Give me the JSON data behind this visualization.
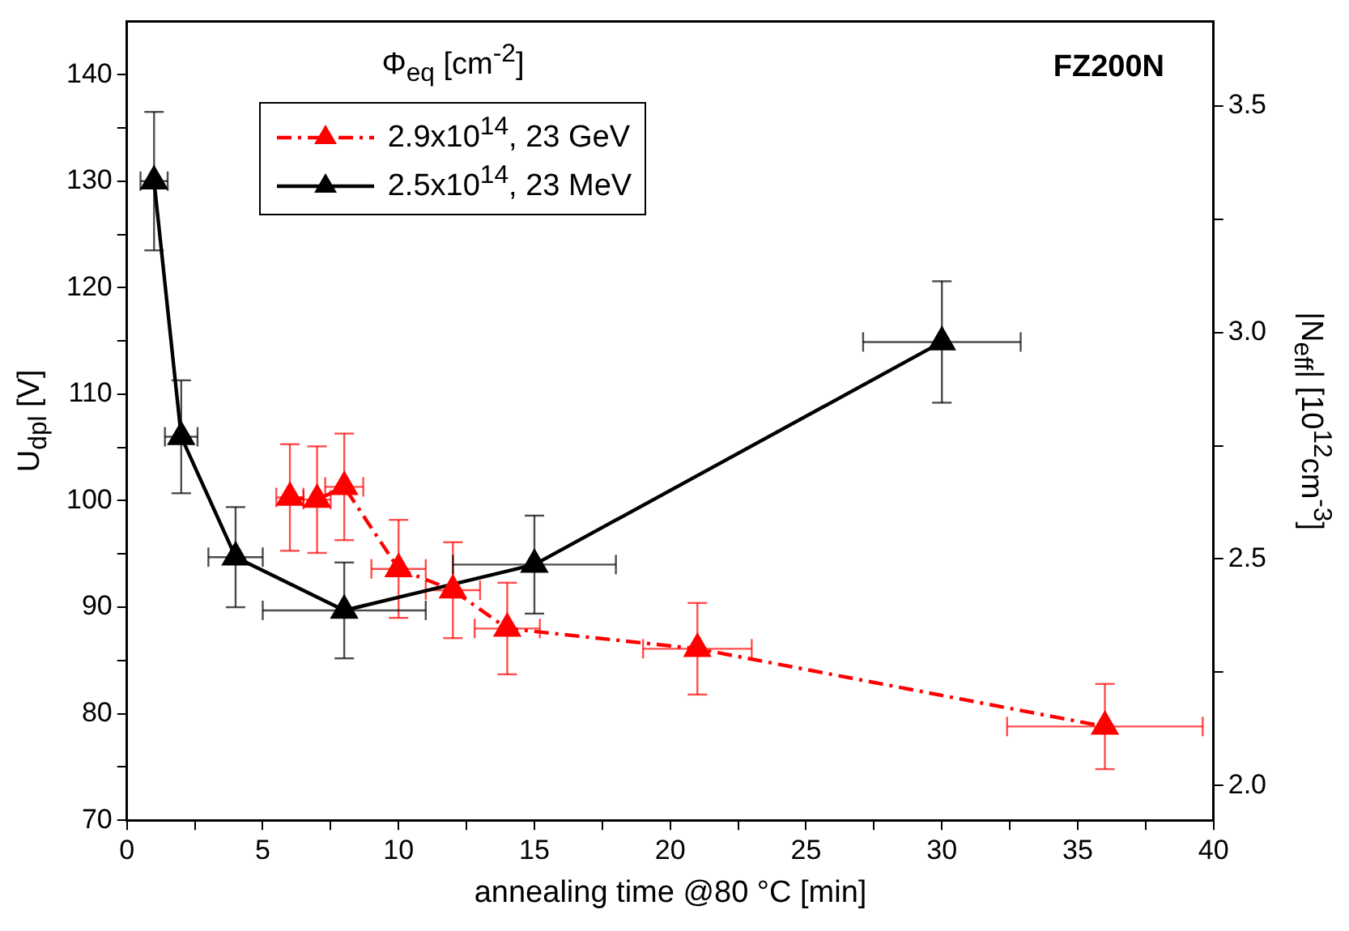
{
  "chart_data": {
    "type": "line",
    "xlabel": "annealing time @80 °C [min]",
    "ylabel": "U$_{dpl}$ [V]",
    "y2label": "|N$_{eff}$| [10$^{12}$cm$^{-3}$]",
    "legend_title": "Φ$_{eq}$ [cm$^{-2}$]",
    "annotations": [
      "FZ200N"
    ],
    "legend": "top left",
    "grid": false,
    "marker": "triangle",
    "xlim": [
      0,
      40
    ],
    "xticks": [
      0,
      {
        "value": 2.5,
        "label": null
      },
      5,
      {
        "value": 7.5,
        "label": null
      },
      10,
      {
        "value": 12.5,
        "label": null
      },
      15,
      {
        "value": 17.5,
        "label": null
      },
      20,
      {
        "value": 22.5,
        "label": null
      },
      25,
      {
        "value": 27.5,
        "label": null
      },
      30,
      {
        "value": 32.5,
        "label": null
      },
      35,
      {
        "value": 37.5,
        "label": null
      },
      40
    ],
    "ylim": [
      70,
      145
    ],
    "yticks": [
      70,
      {
        "value": 75,
        "label": null
      },
      80,
      {
        "value": 85,
        "label": null
      },
      90,
      {
        "value": 95,
        "label": null
      },
      100,
      {
        "value": 105,
        "label": null
      },
      110,
      {
        "value": 115,
        "label": null
      },
      120,
      {
        "value": 125,
        "label": null
      },
      130,
      {
        "value": 135,
        "label": null
      },
      140
    ],
    "y2lim": [
      1.923,
      3.687
    ],
    "y2ticks": [
      {
        "value": 2,
        "label": "2.0"
      },
      {
        "value": 2.25,
        "label": null
      },
      2.5,
      {
        "value": 2.75,
        "label": null
      },
      {
        "value": 3,
        "label": "3.0"
      },
      {
        "value": 3.25,
        "label": null
      },
      3.5
    ],
    "series": [
      {
        "name": "2.9x10$^{14}$, 23 GeV",
        "color": "#ff0000",
        "line_style": "dashdot",
        "x": [
          6,
          7,
          8,
          10,
          12,
          14,
          21,
          36
        ],
        "values": [
          100.3,
          100.1,
          101.3,
          93.6,
          91.6,
          88,
          86.1,
          78.8
        ],
        "errors": [
          5,
          5,
          5,
          4.6,
          4.5,
          4.3,
          4.3,
          4
        ],
        "xerrors": [
          0.5,
          0.5,
          0.7,
          1,
          1,
          1.2,
          2,
          3.6
        ]
      },
      {
        "name": "2.5x10$^{14}$, 23 MeV",
        "color": "#000000",
        "line_style": "solid",
        "x": [
          1,
          2,
          4,
          8,
          15,
          30
        ],
        "values": [
          130,
          106,
          94.7,
          89.7,
          94,
          114.9
        ],
        "errors": [
          6.5,
          5.3,
          4.7,
          4.5,
          4.6,
          5.7
        ],
        "xerrors": [
          0.5,
          0.6,
          1,
          3,
          3,
          2.9
        ]
      }
    ]
  }
}
